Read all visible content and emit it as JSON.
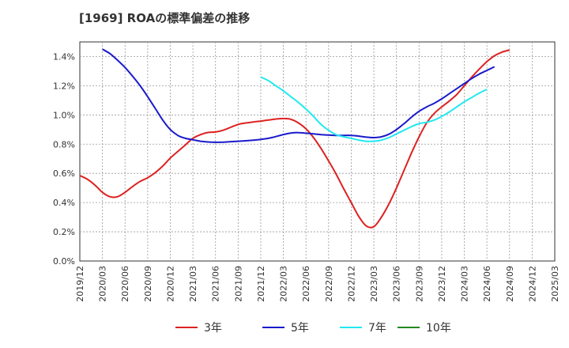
{
  "header": {
    "title": "[1969]  ROAの標準偏差の推移"
  },
  "chart_data": {
    "type": "line",
    "title": "[1969]  ROAの標準偏差の推移",
    "xlabel": "",
    "ylabel": "",
    "x_ticks": [
      "2019/12",
      "2020/03",
      "2020/06",
      "2020/09",
      "2020/12",
      "2021/03",
      "2021/06",
      "2021/09",
      "2021/12",
      "2022/03",
      "2022/06",
      "2022/09",
      "2022/12",
      "2023/03",
      "2023/06",
      "2023/09",
      "2023/12",
      "2024/03",
      "2024/06",
      "2024/09",
      "2024/12",
      "2025/03"
    ],
    "y_ticks": [
      "0.0%",
      "0.2%",
      "0.4%",
      "0.6%",
      "0.8%",
      "1.0%",
      "1.2%",
      "1.4%"
    ],
    "ylim": [
      0,
      1.5
    ],
    "y_unit": "%",
    "grid": true,
    "legend_position": "bottom",
    "series": [
      {
        "name": "3年",
        "color": "#dd2222",
        "points": [
          [
            "2019/12",
            0.585
          ],
          [
            "2020/01",
            0.56
          ],
          [
            "2020/02",
            0.52
          ],
          [
            "2020/03",
            0.47
          ],
          [
            "2020/04",
            0.44
          ],
          [
            "2020/05",
            0.44
          ],
          [
            "2020/06",
            0.47
          ],
          [
            "2020/07",
            0.51
          ],
          [
            "2020/08",
            0.545
          ],
          [
            "2020/09",
            0.57
          ],
          [
            "2020/10",
            0.605
          ],
          [
            "2020/11",
            0.65
          ],
          [
            "2020/12",
            0.705
          ],
          [
            "2021/01",
            0.75
          ],
          [
            "2021/02",
            0.795
          ],
          [
            "2021/03",
            0.84
          ],
          [
            "2021/04",
            0.865
          ],
          [
            "2021/05",
            0.88
          ],
          [
            "2021/06",
            0.883
          ],
          [
            "2021/07",
            0.895
          ],
          [
            "2021/08",
            0.915
          ],
          [
            "2021/09",
            0.935
          ],
          [
            "2021/10",
            0.945
          ],
          [
            "2021/11",
            0.952
          ],
          [
            "2021/12",
            0.958
          ],
          [
            "2022/01",
            0.965
          ],
          [
            "2022/02",
            0.972
          ],
          [
            "2022/03",
            0.975
          ],
          [
            "2022/04",
            0.97
          ],
          [
            "2022/05",
            0.945
          ],
          [
            "2022/06",
            0.905
          ],
          [
            "2022/07",
            0.845
          ],
          [
            "2022/08",
            0.77
          ],
          [
            "2022/09",
            0.685
          ],
          [
            "2022/10",
            0.595
          ],
          [
            "2022/11",
            0.495
          ],
          [
            "2022/12",
            0.4
          ],
          [
            "2023/01",
            0.305
          ],
          [
            "2023/02",
            0.24
          ],
          [
            "2023/03",
            0.235
          ],
          [
            "2023/04",
            0.3
          ],
          [
            "2023/05",
            0.39
          ],
          [
            "2023/06",
            0.5
          ],
          [
            "2023/07",
            0.62
          ],
          [
            "2023/08",
            0.74
          ],
          [
            "2023/09",
            0.85
          ],
          [
            "2023/10",
            0.945
          ],
          [
            "2023/11",
            1.01
          ],
          [
            "2023/12",
            1.055
          ],
          [
            "2024/01",
            1.095
          ],
          [
            "2024/02",
            1.14
          ],
          [
            "2024/03",
            1.2
          ],
          [
            "2024/04",
            1.26
          ],
          [
            "2024/05",
            1.315
          ],
          [
            "2024/06",
            1.365
          ],
          [
            "2024/07",
            1.405
          ],
          [
            "2024/08",
            1.43
          ],
          [
            "2024/09",
            1.445
          ]
        ]
      },
      {
        "name": "5年",
        "color": "#1a1acc",
        "points": [
          [
            "2020/03",
            1.45
          ],
          [
            "2020/04",
            1.42
          ],
          [
            "2020/05",
            1.375
          ],
          [
            "2020/06",
            1.325
          ],
          [
            "2020/07",
            1.265
          ],
          [
            "2020/08",
            1.2
          ],
          [
            "2020/09",
            1.125
          ],
          [
            "2020/10",
            1.045
          ],
          [
            "2020/11",
            0.965
          ],
          [
            "2020/12",
            0.9
          ],
          [
            "2021/01",
            0.86
          ],
          [
            "2021/02",
            0.84
          ],
          [
            "2021/03",
            0.83
          ],
          [
            "2021/04",
            0.82
          ],
          [
            "2021/05",
            0.815
          ],
          [
            "2021/06",
            0.813
          ],
          [
            "2021/07",
            0.814
          ],
          [
            "2021/08",
            0.817
          ],
          [
            "2021/09",
            0.82
          ],
          [
            "2021/10",
            0.823
          ],
          [
            "2021/11",
            0.827
          ],
          [
            "2021/12",
            0.833
          ],
          [
            "2022/01",
            0.84
          ],
          [
            "2022/02",
            0.852
          ],
          [
            "2022/03",
            0.866
          ],
          [
            "2022/04",
            0.876
          ],
          [
            "2022/05",
            0.879
          ],
          [
            "2022/06",
            0.875
          ],
          [
            "2022/07",
            0.87
          ],
          [
            "2022/08",
            0.865
          ],
          [
            "2022/09",
            0.862
          ],
          [
            "2022/10",
            0.86
          ],
          [
            "2022/11",
            0.86
          ],
          [
            "2022/12",
            0.86
          ],
          [
            "2023/01",
            0.855
          ],
          [
            "2023/02",
            0.848
          ],
          [
            "2023/03",
            0.845
          ],
          [
            "2023/04",
            0.85
          ],
          [
            "2023/05",
            0.868
          ],
          [
            "2023/06",
            0.9
          ],
          [
            "2023/07",
            0.94
          ],
          [
            "2023/08",
            0.985
          ],
          [
            "2023/09",
            1.025
          ],
          [
            "2023/10",
            1.055
          ],
          [
            "2023/11",
            1.08
          ],
          [
            "2023/12",
            1.11
          ],
          [
            "2024/01",
            1.145
          ],
          [
            "2024/02",
            1.18
          ],
          [
            "2024/03",
            1.215
          ],
          [
            "2024/04",
            1.25
          ],
          [
            "2024/05",
            1.28
          ],
          [
            "2024/06",
            1.305
          ],
          [
            "2024/07",
            1.33
          ]
        ]
      },
      {
        "name": "7年",
        "color": "#22e8f0",
        "points": [
          [
            "2021/12",
            1.26
          ],
          [
            "2022/01",
            1.235
          ],
          [
            "2022/02",
            1.2
          ],
          [
            "2022/03",
            1.165
          ],
          [
            "2022/04",
            1.125
          ],
          [
            "2022/05",
            1.085
          ],
          [
            "2022/06",
            1.04
          ],
          [
            "2022/07",
            0.99
          ],
          [
            "2022/08",
            0.935
          ],
          [
            "2022/09",
            0.895
          ],
          [
            "2022/10",
            0.865
          ],
          [
            "2022/11",
            0.85
          ],
          [
            "2022/12",
            0.84
          ],
          [
            "2023/01",
            0.828
          ],
          [
            "2023/02",
            0.82
          ],
          [
            "2023/03",
            0.82
          ],
          [
            "2023/04",
            0.828
          ],
          [
            "2023/05",
            0.845
          ],
          [
            "2023/06",
            0.87
          ],
          [
            "2023/07",
            0.895
          ],
          [
            "2023/08",
            0.92
          ],
          [
            "2023/09",
            0.94
          ],
          [
            "2023/10",
            0.95
          ],
          [
            "2023/11",
            0.965
          ],
          [
            "2023/12",
            0.99
          ],
          [
            "2024/01",
            1.02
          ],
          [
            "2024/02",
            1.055
          ],
          [
            "2024/03",
            1.09
          ],
          [
            "2024/04",
            1.12
          ],
          [
            "2024/05",
            1.15
          ],
          [
            "2024/06",
            1.175
          ]
        ]
      },
      {
        "name": "10年",
        "color": "#228822",
        "points": []
      }
    ]
  }
}
